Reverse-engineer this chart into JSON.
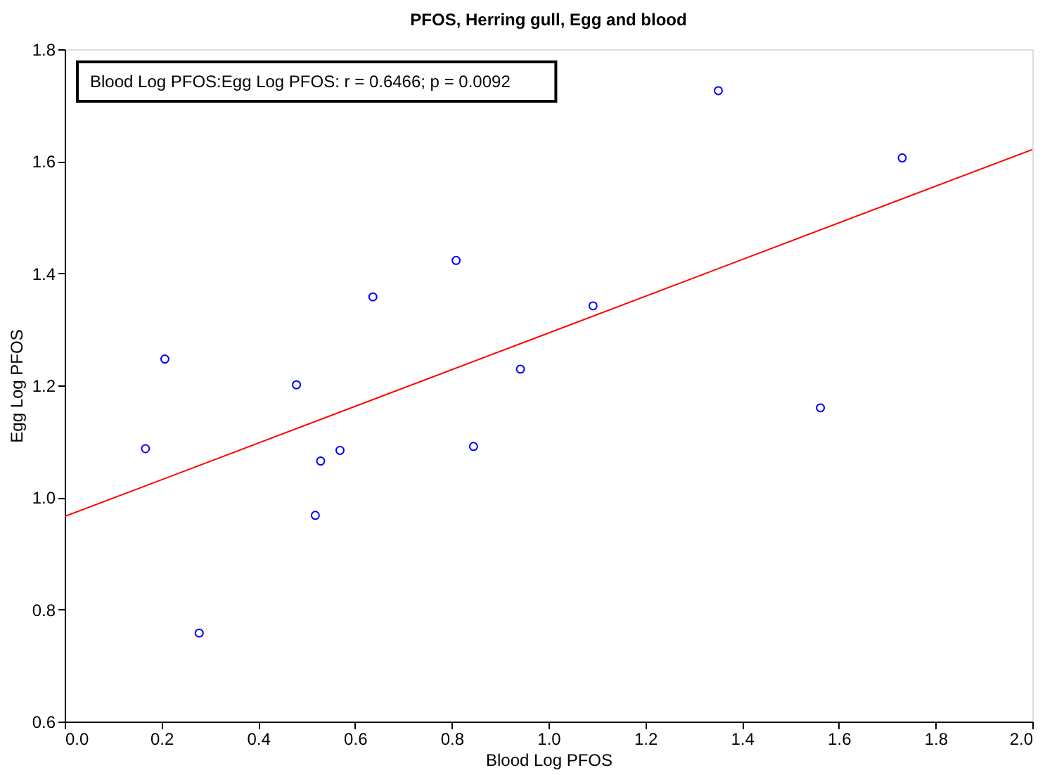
{
  "chart_data": {
    "type": "scatter",
    "title": "PFOS, Herring gull, Egg and blood",
    "xlabel": "Blood Log PFOS",
    "ylabel": "Egg Log PFOS",
    "x": [
      0.167,
      0.207,
      0.278,
      0.479,
      0.518,
      0.529,
      0.569,
      0.637,
      0.809,
      0.845,
      0.942,
      1.092,
      1.351,
      1.562,
      1.731
    ],
    "series": [
      {
        "color": "#0000ff",
        "marker": "circle",
        "values": [
          1.087,
          1.247,
          0.758,
          1.201,
          0.968,
          1.065,
          1.084,
          1.358,
          1.423,
          1.091,
          1.229,
          1.342,
          1.726,
          1.16,
          1.606
        ]
      },
      {
        "type": "line",
        "color": "#ff0000",
        "x": [
          0.0,
          2.0
        ],
        "values": [
          0.966,
          1.621
        ]
      }
    ],
    "annotations": [
      "Blood Log PFOS:Egg Log PFOS:    r = 0.6466; p = 0.0092"
    ],
    "xlim": [
      0.0,
      2.0
    ],
    "xticks": [
      {
        "value": 0,
        "label": "0.0"
      },
      0.2,
      0.4,
      0.6,
      0.8,
      {
        "value": 1,
        "label": "1.0"
      },
      1.2,
      1.4,
      1.6,
      1.8,
      {
        "value": 2,
        "label": "2.0"
      }
    ],
    "ylim": [
      0.6,
      1.8
    ],
    "yticks": [
      0.6,
      0.8,
      {
        "value": 1,
        "label": "1.0"
      },
      1.2,
      1.4,
      1.6,
      1.8
    ],
    "grid": false
  }
}
